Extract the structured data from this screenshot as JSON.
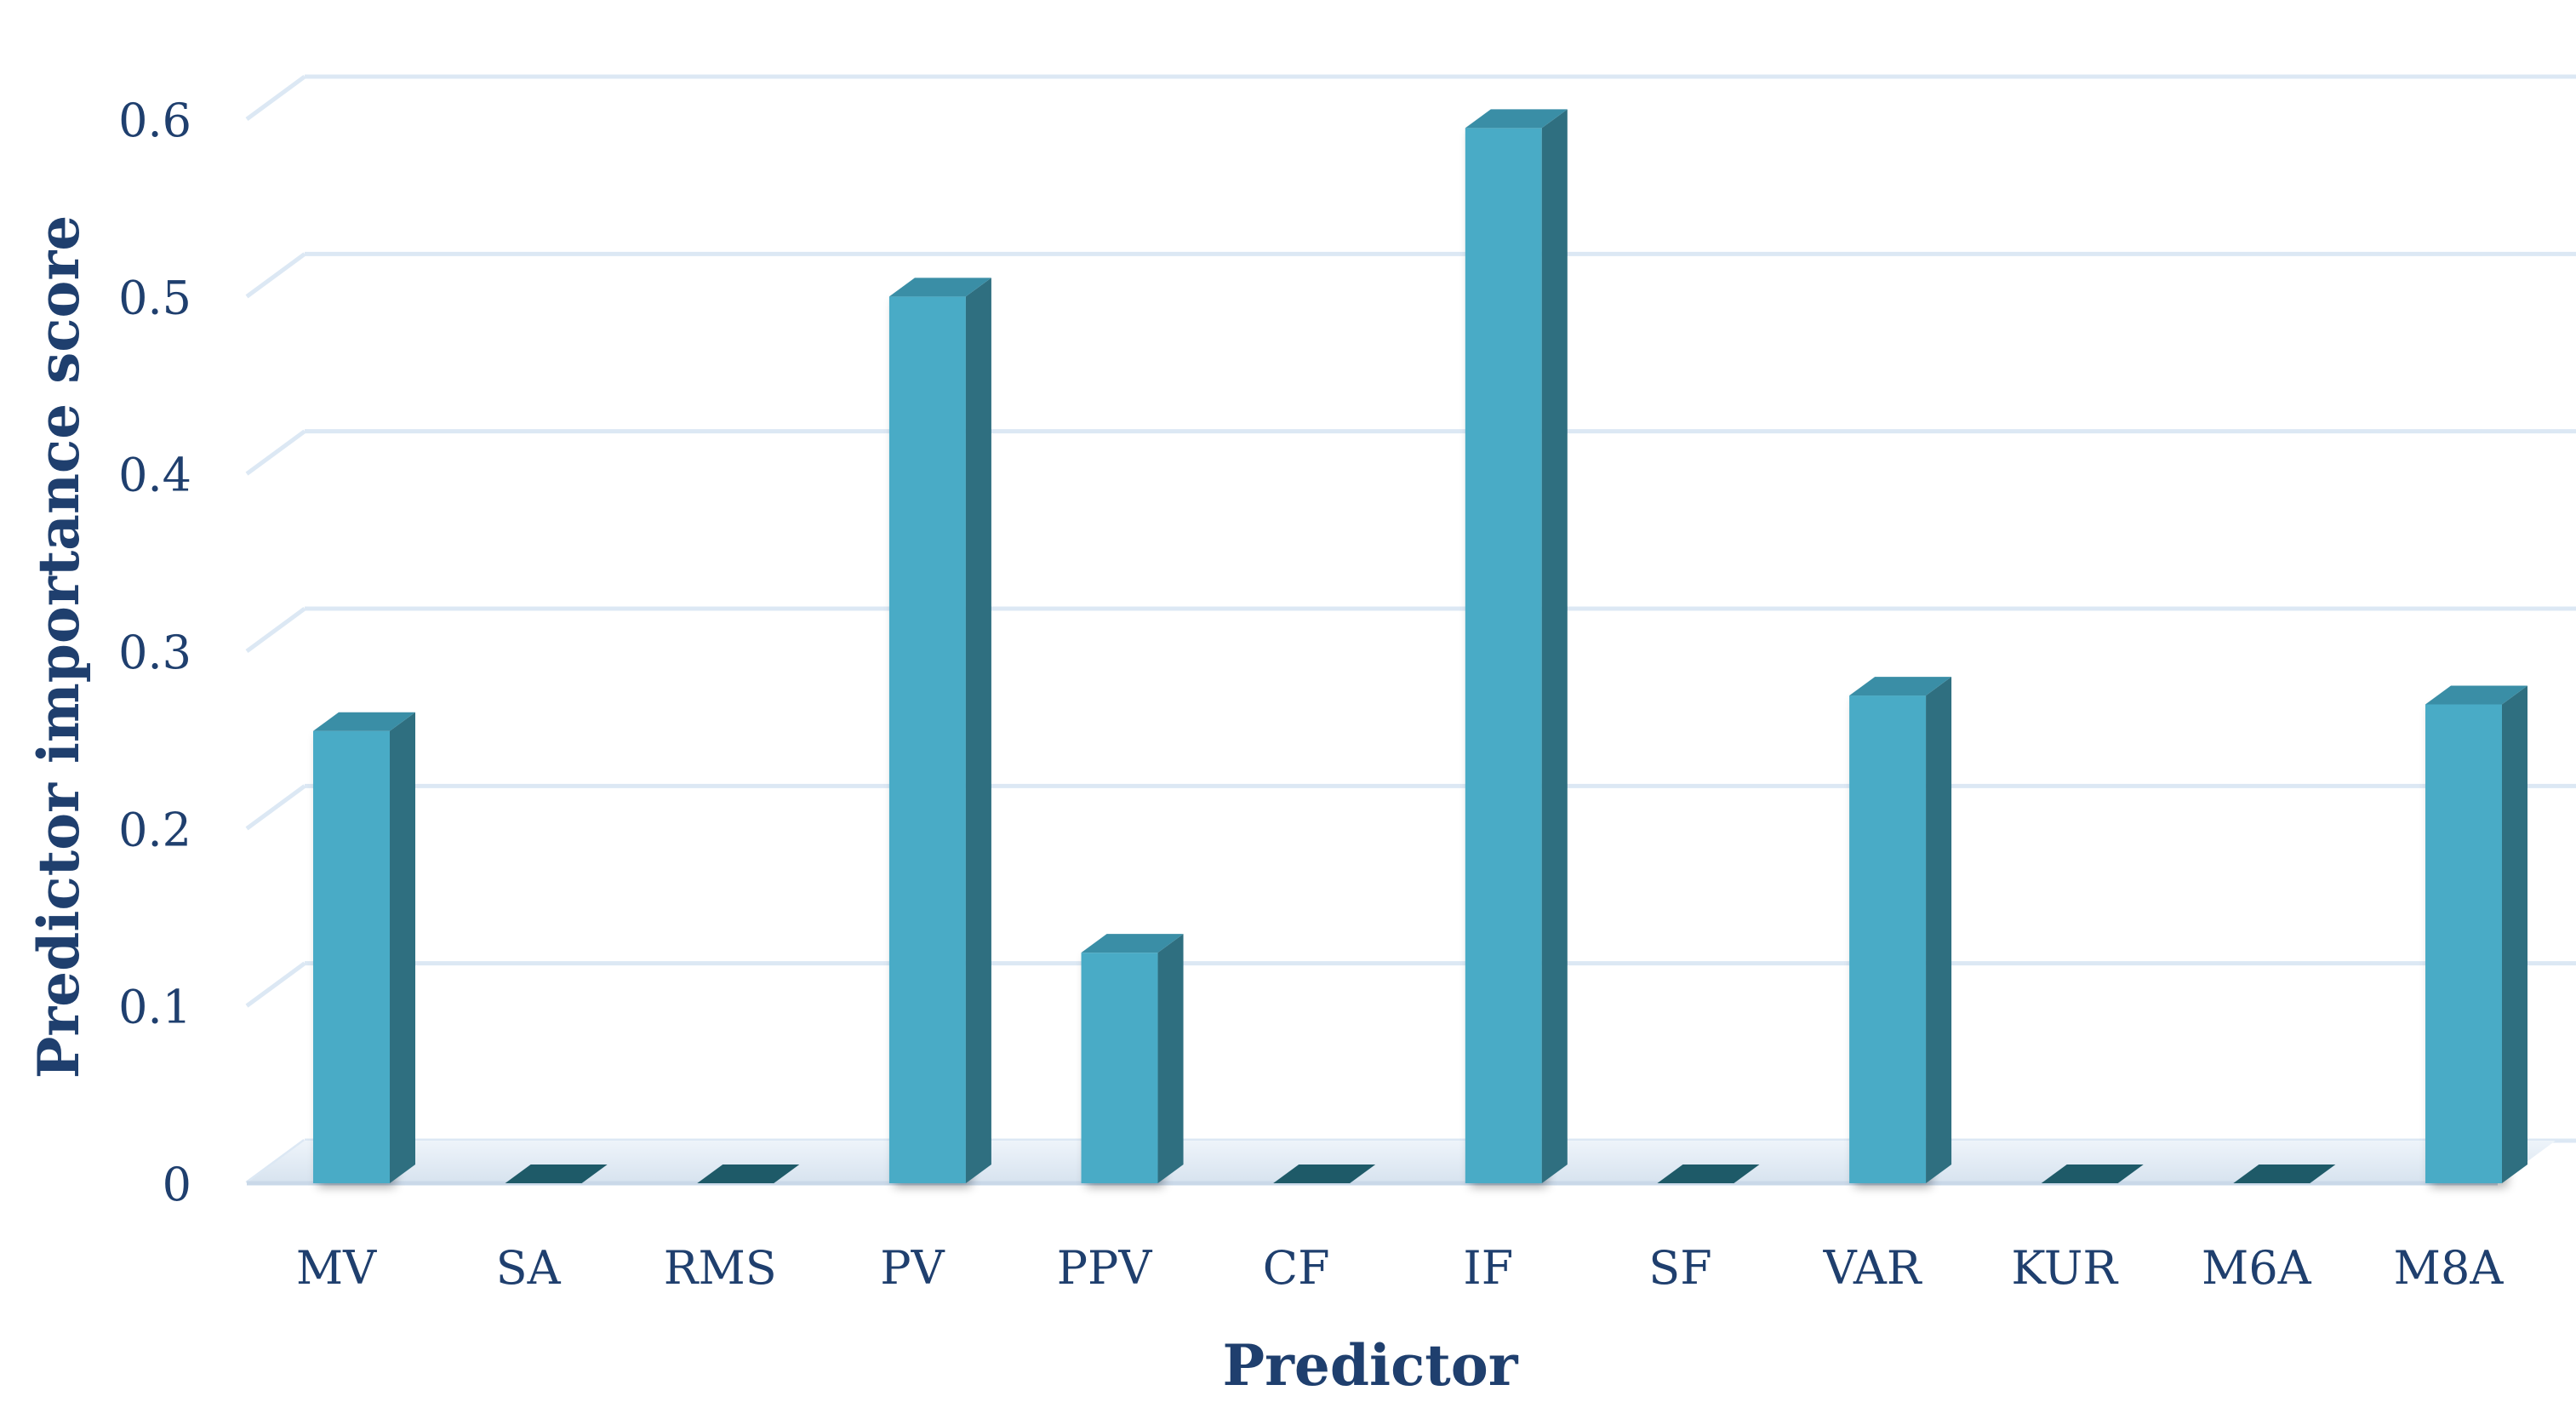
{
  "chart_data": {
    "type": "bar",
    "style": "3d-column",
    "categories": [
      "MV",
      "SA",
      "RMS",
      "PV",
      "PPV",
      "CF",
      "IF",
      "SF",
      "VAR",
      "KUR",
      "M6A",
      "M8A"
    ],
    "values": [
      0.255,
      0.0,
      0.0,
      0.5,
      0.13,
      0.0,
      0.595,
      0.0,
      0.275,
      0.0,
      0.0,
      0.27
    ],
    "title": "",
    "xlabel": "Predictor",
    "ylabel": "Predictor importance score",
    "ylim": [
      0,
      0.6
    ],
    "yticks": [
      0,
      0.1,
      0.2,
      0.3,
      0.4,
      0.5,
      0.6
    ],
    "ytick_labels": [
      "0",
      "0.1",
      "0.2",
      "0.3",
      "0.4",
      "0.5",
      "0.6"
    ],
    "grid": true,
    "legend": "none",
    "colors": {
      "bar_front": "#4aabc6",
      "bar_side": "#2f6f80",
      "bar_top": "#3a8ea6",
      "zero_bar": "#1e5a68",
      "grid": "#dce8f4",
      "text": "#1f3f6e"
    }
  }
}
